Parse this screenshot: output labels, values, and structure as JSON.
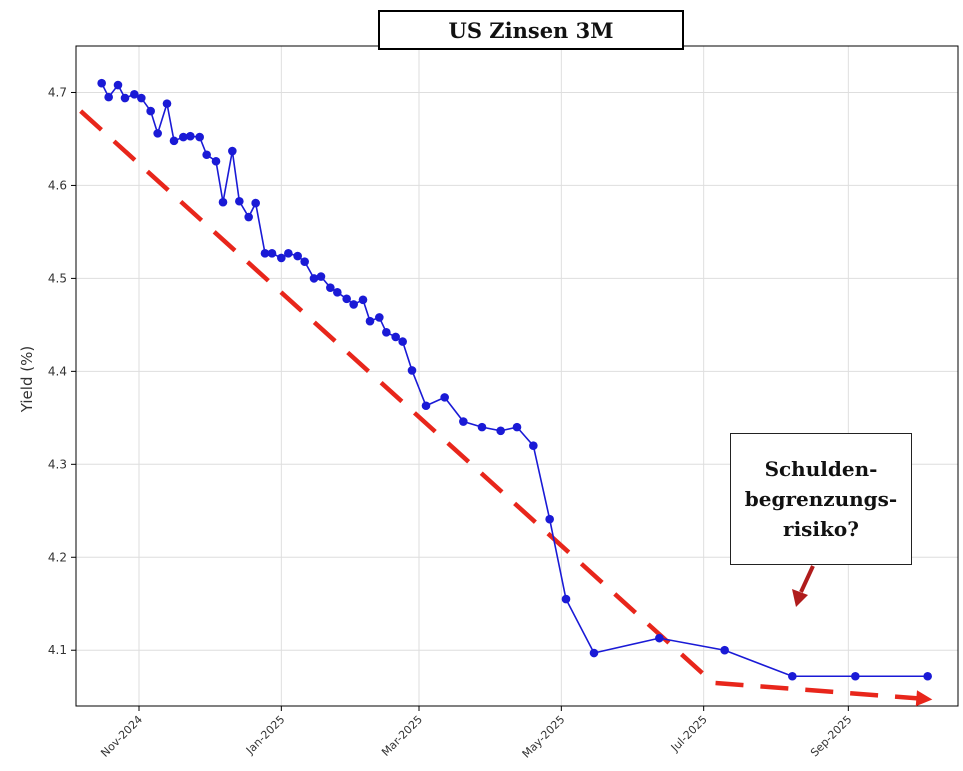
{
  "chart_data": {
    "type": "line",
    "title": "US Zinsen 3M",
    "ylabel": "Yield (%)",
    "xlabel": "",
    "ylim": [
      4.04,
      4.75
    ],
    "xlim": [
      "2024-10-05",
      "2025-10-18"
    ],
    "grid": true,
    "yticks": [
      4.1,
      4.2,
      4.3,
      4.4,
      4.5,
      4.6,
      4.7
    ],
    "ytick_labels": [
      "4.1",
      "4.2",
      "4.3",
      "4.4",
      "4.5",
      "4.6",
      "4.7"
    ],
    "xticks": [
      "2024-11-01",
      "2025-01-01",
      "2025-03-01",
      "2025-05-01",
      "2025-07-01",
      "2025-09-01"
    ],
    "xtick_labels": [
      "Nov-2024",
      "Jan-2025",
      "Mar-2025",
      "May-2025",
      "Jul-2025",
      "Sep-2025"
    ],
    "series": [
      {
        "color": "#1a1ad6",
        "x": [
          "2024-10-16",
          "2024-10-19",
          "2024-10-23",
          "2024-10-26",
          "2024-10-30",
          "2024-11-02",
          "2024-11-06",
          "2024-11-09",
          "2024-11-13",
          "2024-11-16",
          "2024-11-20",
          "2024-11-23",
          "2024-11-27",
          "2024-11-30",
          "2024-12-04",
          "2024-12-07",
          "2024-12-11",
          "2024-12-14",
          "2024-12-18",
          "2024-12-21",
          "2024-12-25",
          "2024-12-28",
          "2025-01-01",
          "2025-01-04",
          "2025-01-08",
          "2025-01-11",
          "2025-01-15",
          "2025-01-18",
          "2025-01-22",
          "2025-01-25",
          "2025-01-29",
          "2025-02-01",
          "2025-02-05",
          "2025-02-08",
          "2025-02-12",
          "2025-02-15",
          "2025-02-19",
          "2025-02-22",
          "2025-02-26",
          "2025-03-04",
          "2025-03-12",
          "2025-03-20",
          "2025-03-28",
          "2025-04-05",
          "2025-04-12",
          "2025-04-19",
          "2025-04-26",
          "2025-05-03",
          "2025-05-15",
          "2025-06-12",
          "2025-07-10",
          "2025-08-08",
          "2025-09-04",
          "2025-10-05"
        ],
        "values": [
          4.71,
          4.695,
          4.708,
          4.694,
          4.698,
          4.694,
          4.68,
          4.656,
          4.688,
          4.648,
          4.652,
          4.653,
          4.652,
          4.633,
          4.626,
          4.582,
          4.637,
          4.583,
          4.566,
          4.581,
          4.527,
          4.527,
          4.522,
          4.527,
          4.524,
          4.518,
          4.5,
          4.502,
          4.49,
          4.485,
          4.478,
          4.472,
          4.477,
          4.454,
          4.458,
          4.442,
          4.437,
          4.432,
          4.401,
          4.363,
          4.372,
          4.346,
          4.34,
          4.336,
          4.34,
          4.32,
          4.241,
          4.155,
          4.097,
          4.113,
          4.1,
          4.072,
          4.072,
          4.072
        ]
      }
    ],
    "trend_line": {
      "color": "#e8261b",
      "style": "dashed",
      "x": [
        "2024-10-07",
        "2025-07-05",
        "2025-10-07"
      ],
      "values": [
        4.68,
        4.065,
        4.047
      ]
    },
    "annotation": {
      "lines": [
        "Schulden-",
        "begrenzungs-",
        "risiko?"
      ],
      "arrow_color": "#b01c1c"
    }
  }
}
